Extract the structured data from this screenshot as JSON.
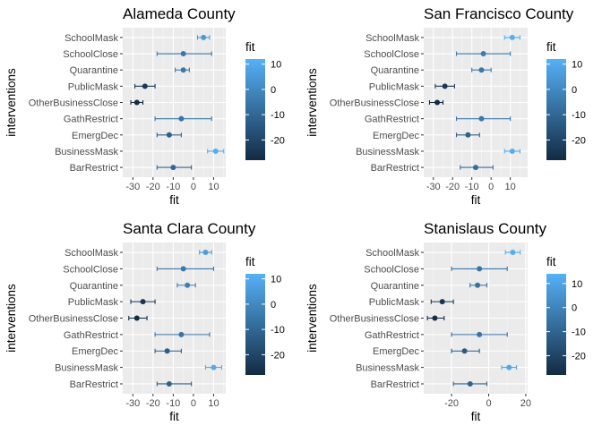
{
  "colorscale": {
    "low": "#132B43",
    "high": "#56B1F7"
  },
  "chart_data": [
    {
      "type": "scatter",
      "title": "Alameda County",
      "xlabel": "fit",
      "ylabel": "interventions",
      "categories": [
        "SchoolMask",
        "SchoolClose",
        "Quarantine",
        "PublicMask",
        "OtherBusinessClose",
        "GathRestrict",
        "EmergDec",
        "BusinessMask",
        "BarRestrict"
      ],
      "values": [
        5,
        -5,
        -5,
        -24,
        -28,
        -6,
        -12,
        11,
        -10
      ],
      "lower": [
        2,
        -18,
        -9,
        -29,
        -31,
        -19,
        -18,
        7,
        -18
      ],
      "upper": [
        8,
        9,
        -2,
        -19,
        -25,
        9,
        -6,
        15,
        -1
      ],
      "xlim": [
        -35,
        16
      ],
      "xticks": [
        -30,
        -20,
        -10,
        0,
        10
      ],
      "xtick_labels": [
        "-30",
        "-20",
        "-10",
        "0",
        "10"
      ],
      "grid": true,
      "legend": {
        "title": "fit",
        "position": "right",
        "range": [
          -28,
          12
        ],
        "ticks": [
          10,
          0,
          -10,
          -20
        ],
        "tick_labels": [
          "10",
          "0",
          "-10",
          "-20"
        ]
      }
    },
    {
      "type": "scatter",
      "title": "San Francisco County",
      "xlabel": "fit",
      "ylabel": "interventions",
      "categories": [
        "SchoolMask",
        "SchoolClose",
        "Quarantine",
        "PublicMask",
        "OtherBusinessClose",
        "GathRestrict",
        "EmergDec",
        "BusinessMask",
        "BarRestrict"
      ],
      "values": [
        11,
        -4,
        -5,
        -24,
        -28,
        -5,
        -12,
        11,
        -8
      ],
      "lower": [
        7,
        -18,
        -10,
        -29,
        -32,
        -18,
        -18,
        7,
        -16
      ],
      "upper": [
        15,
        10,
        0,
        -19,
        -25,
        10,
        -6,
        15,
        1
      ],
      "xlim": [
        -35,
        19
      ],
      "xticks": [
        -30,
        -20,
        -10,
        0,
        10
      ],
      "xtick_labels": [
        "-30",
        "-20",
        "-10",
        "0",
        "10"
      ],
      "grid": true,
      "legend": {
        "title": "fit",
        "position": "right",
        "range": [
          -28,
          12
        ],
        "ticks": [
          10,
          0,
          -10,
          -20
        ],
        "tick_labels": [
          "10",
          "0",
          "-10",
          "-20"
        ]
      }
    },
    {
      "type": "scatter",
      "title": "Santa Clara County",
      "xlabel": "fit",
      "ylabel": "interventions",
      "categories": [
        "SchoolMask",
        "SchoolClose",
        "Quarantine",
        "PublicMask",
        "OtherBusinessClose",
        "GathRestrict",
        "EmergDec",
        "BusinessMask",
        "BarRestrict"
      ],
      "values": [
        6,
        -5,
        -3,
        -25,
        -28,
        -6,
        -13,
        10,
        -12
      ],
      "lower": [
        3,
        -18,
        -8,
        -31,
        -32,
        -19,
        -19,
        6,
        -18
      ],
      "upper": [
        9,
        10,
        1,
        -19,
        -23,
        8,
        -6,
        14,
        -1
      ],
      "xlim": [
        -35,
        16
      ],
      "xticks": [
        -30,
        -20,
        -10,
        0,
        10
      ],
      "xtick_labels": [
        "-30",
        "-20",
        "-10",
        "0",
        "10"
      ],
      "grid": true,
      "legend": {
        "title": "fit",
        "position": "right",
        "range": [
          -28,
          12
        ],
        "ticks": [
          10,
          0,
          -10,
          -20
        ],
        "tick_labels": [
          "10",
          "0",
          "-10",
          "-20"
        ]
      }
    },
    {
      "type": "scatter",
      "title": "Stanislaus County",
      "xlabel": "fit",
      "ylabel": "interventions",
      "categories": [
        "SchoolMask",
        "SchoolClose",
        "Quarantine",
        "PublicMask",
        "OtherBusinessClose",
        "GathRestrict",
        "EmergDec",
        "BusinessMask",
        "BarRestrict"
      ],
      "values": [
        13,
        -5,
        -6,
        -25,
        -29,
        -5,
        -13,
        11,
        -10
      ],
      "lower": [
        9,
        -20,
        -10,
        -31,
        -33,
        -20,
        -20,
        7,
        -19
      ],
      "upper": [
        17,
        10,
        -1,
        -19,
        -24,
        10,
        -5,
        15,
        -1
      ],
      "xlim": [
        -35,
        21
      ],
      "xticks": [
        -20,
        0,
        20
      ],
      "xtick_labels": [
        "-20",
        "0",
        "20"
      ],
      "grid": true,
      "legend": {
        "title": "fit",
        "position": "right",
        "range": [
          -28,
          14
        ],
        "ticks": [
          10,
          0,
          -10,
          -20
        ],
        "tick_labels": [
          "10",
          "0",
          "-10",
          "-20"
        ]
      }
    }
  ]
}
